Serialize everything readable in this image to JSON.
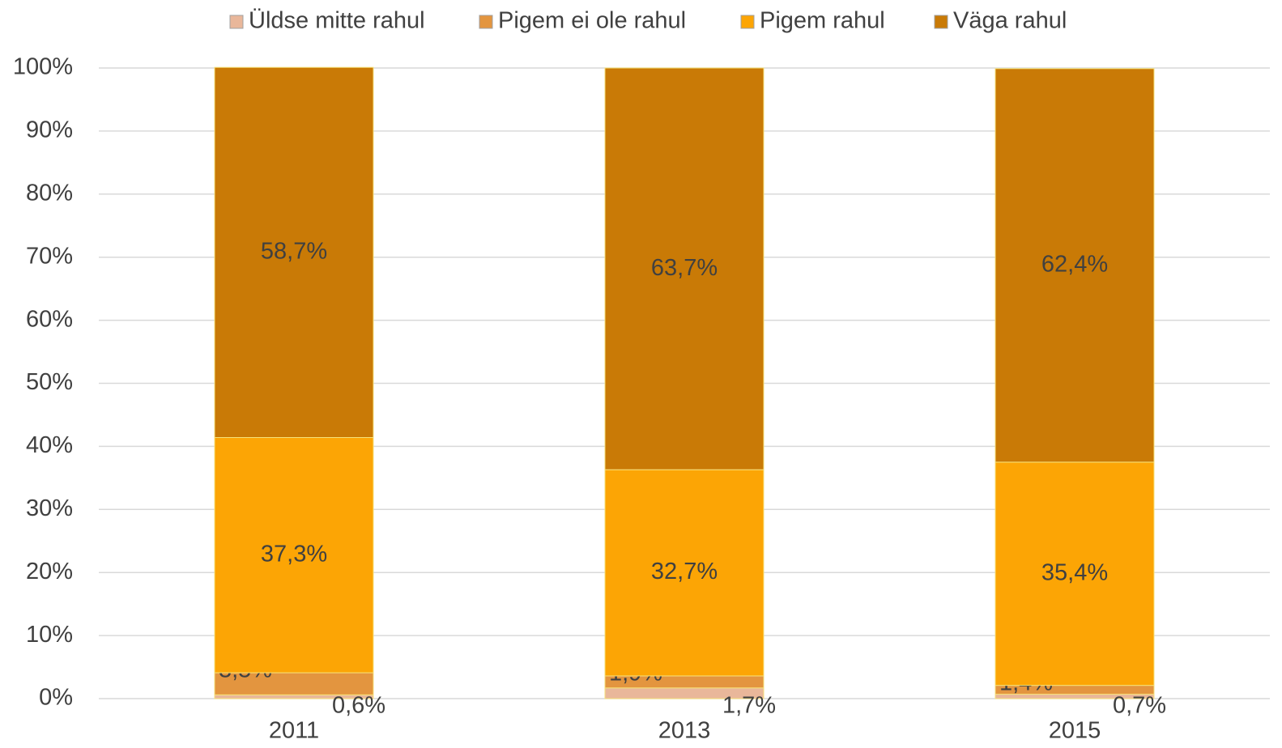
{
  "chart_data": {
    "type": "stacked_bar",
    "categories": [
      "2011",
      "2013",
      "2015"
    ],
    "series": [
      {
        "name": "Üldse mitte rahul",
        "color": "#e9b79a",
        "values": [
          0.6,
          1.7,
          0.7
        ],
        "value_labels": [
          "0,6%",
          "1,7%",
          "0,7%"
        ]
      },
      {
        "name": "Pigem ei ole rahul",
        "color": "#e3953f",
        "values": [
          3.5,
          1.9,
          1.4
        ],
        "value_labels": [
          "3,5%",
          "1,9%",
          "1,4%"
        ]
      },
      {
        "name": "Pigem rahul",
        "color": "#fca505",
        "values": [
          37.3,
          32.7,
          35.4
        ],
        "value_labels": [
          "37,3%",
          "32,7%",
          "35,4%"
        ]
      },
      {
        "name": "Väga rahul",
        "color": "#c97a06",
        "values": [
          58.7,
          63.7,
          62.4
        ],
        "value_labels": [
          "58,7%",
          "63,7%",
          "62,4%"
        ]
      }
    ],
    "ylim": [
      0,
      100
    ],
    "yticks": [
      {
        "value": 0,
        "label": "0%"
      },
      {
        "value": 10,
        "label": "10%"
      },
      {
        "value": 20,
        "label": "20%"
      },
      {
        "value": 30,
        "label": "30%"
      },
      {
        "value": 40,
        "label": "40%"
      },
      {
        "value": 50,
        "label": "50%"
      },
      {
        "value": 60,
        "label": "60%"
      },
      {
        "value": 70,
        "label": "70%"
      },
      {
        "value": 80,
        "label": "80%"
      },
      {
        "value": 90,
        "label": "90%"
      },
      {
        "value": 100,
        "label": "100%"
      }
    ],
    "grid": true,
    "legend": "top"
  }
}
